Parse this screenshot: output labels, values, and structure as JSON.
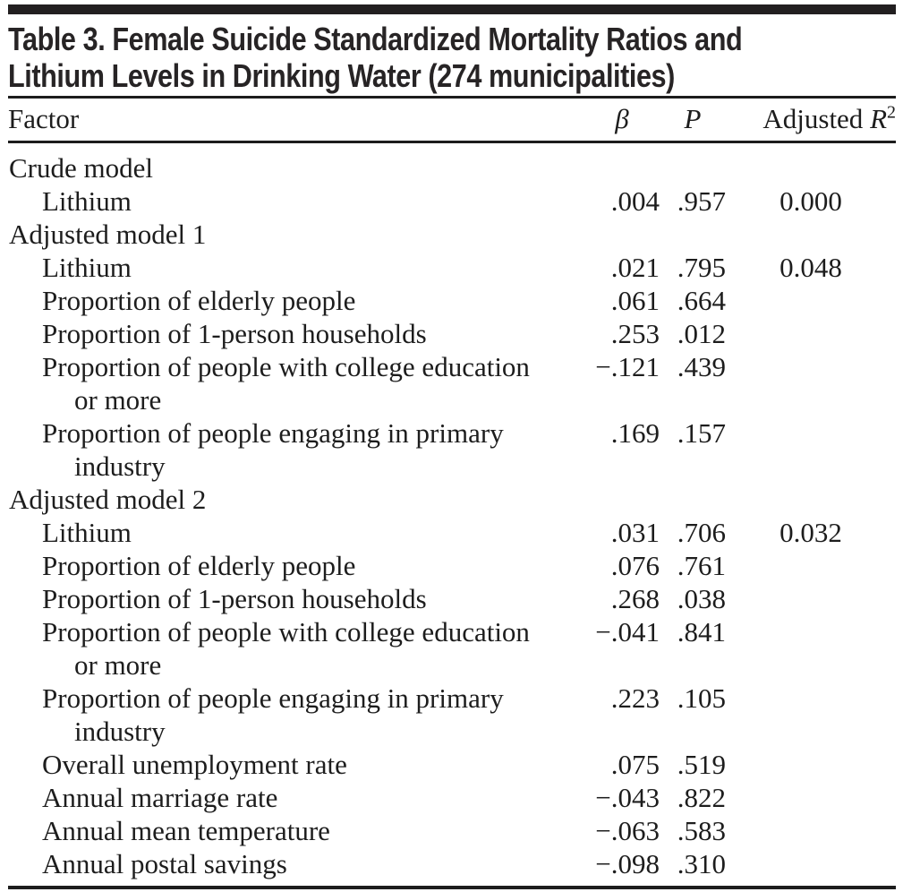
{
  "colors": {
    "bar": "#221f20",
    "text": "#1d1d1d"
  },
  "table": {
    "title_lines": [
      "Table 3. Female Suicide Standardized Mortality Ratios and",
      "Lithium Levels in Drinking Water (274 municipalities)"
    ],
    "header": {
      "factor": "Factor",
      "beta": "β",
      "p": "P",
      "adjusted_label": "Adjusted ",
      "r_symbol": "R",
      "r_sup": "2"
    },
    "rows": [
      {
        "kind": "group",
        "label": "Crude model"
      },
      {
        "kind": "item",
        "label": "Lithium",
        "beta": ".004",
        "p": ".957",
        "adj_r2": "0.000"
      },
      {
        "kind": "group",
        "label": "Adjusted model 1"
      },
      {
        "kind": "item",
        "label": "Lithium",
        "beta": ".021",
        "p": ".795",
        "adj_r2": "0.048"
      },
      {
        "kind": "item",
        "label": "Proportion of elderly people",
        "beta": ".061",
        "p": ".664"
      },
      {
        "kind": "item",
        "label": "Proportion of 1-person households",
        "beta": ".253",
        "p": ".012"
      },
      {
        "kind": "item",
        "label": "Proportion of people with college education",
        "label2": "or more",
        "beta": "−.121",
        "p": ".439"
      },
      {
        "kind": "item",
        "label": "Proportion of people engaging in primary",
        "label2": "industry",
        "beta": ".169",
        "p": ".157"
      },
      {
        "kind": "group",
        "label": "Adjusted model 2"
      },
      {
        "kind": "item",
        "label": "Lithium",
        "beta": ".031",
        "p": ".706",
        "adj_r2": "0.032"
      },
      {
        "kind": "item",
        "label": "Proportion of elderly people",
        "beta": ".076",
        "p": ".761"
      },
      {
        "kind": "item",
        "label": "Proportion of 1-person households",
        "beta": ".268",
        "p": ".038"
      },
      {
        "kind": "item",
        "label": "Proportion of people with college education",
        "label2": "or more",
        "beta": "−.041",
        "p": ".841"
      },
      {
        "kind": "item",
        "label": "Proportion of people engaging in primary",
        "label2": "industry",
        "beta": ".223",
        "p": ".105"
      },
      {
        "kind": "item",
        "label": "Overall unemployment rate",
        "beta": ".075",
        "p": ".519"
      },
      {
        "kind": "item",
        "label": "Annual marriage rate",
        "beta": "−.043",
        "p": ".822"
      },
      {
        "kind": "item",
        "label": "Annual mean temperature",
        "beta": "−.063",
        "p": ".583"
      },
      {
        "kind": "item",
        "label": "Annual postal savings",
        "beta": "−.098",
        "p": ".310"
      }
    ]
  }
}
